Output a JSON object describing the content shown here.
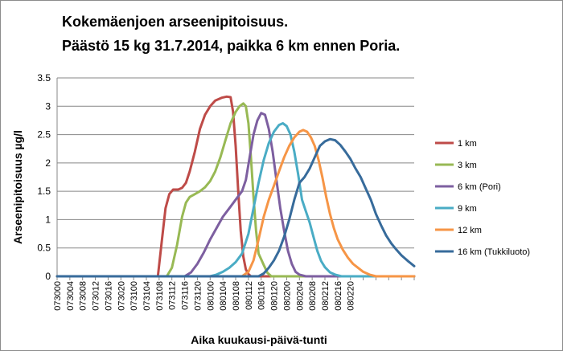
{
  "chart_data": {
    "type": "line",
    "title_lines": [
      "Kokemäenjoen arseenipitoisuus.",
      "Päästö 15 kg 31.7.2014, paikka 6 km ennen Poria."
    ],
    "xlabel": "Aika kuukausi-päivä-tunti",
    "ylabel": "Arseenipitoisuus µg/l",
    "ylim": [
      0,
      3.5
    ],
    "yticks": [
      "0",
      "0.5",
      "1",
      "1.5",
      "2",
      "2.5",
      "3",
      "3.5"
    ],
    "x_range": [
      0,
      28
    ],
    "x_tick_labels": [
      "073000",
      "073004",
      "073008",
      "073012",
      "073016",
      "073020",
      "073100",
      "073104",
      "073108",
      "073112",
      "073116",
      "073120",
      "080100",
      "080104",
      "080108",
      "080112",
      "080116",
      "080120",
      "080200",
      "080204",
      "080208",
      "080212",
      "080216",
      "080220"
    ],
    "grid": "horizontal",
    "legend_position": "right",
    "series": [
      {
        "name": "1 km",
        "color": "#BE4B48",
        "points": [
          [
            0,
            0
          ],
          [
            7.9,
            0
          ],
          [
            8.2,
            0.6
          ],
          [
            8.5,
            1.2
          ],
          [
            8.8,
            1.45
          ],
          [
            9.1,
            1.53
          ],
          [
            9.5,
            1.53
          ],
          [
            9.8,
            1.56
          ],
          [
            10.1,
            1.65
          ],
          [
            10.4,
            1.85
          ],
          [
            10.8,
            2.2
          ],
          [
            11.2,
            2.6
          ],
          [
            11.6,
            2.85
          ],
          [
            12,
            3.0
          ],
          [
            12.4,
            3.1
          ],
          [
            12.9,
            3.15
          ],
          [
            13.3,
            3.17
          ],
          [
            13.6,
            3.16
          ],
          [
            13.8,
            2.9
          ],
          [
            14.0,
            2.3
          ],
          [
            14.2,
            1.5
          ],
          [
            14.4,
            0.8
          ],
          [
            14.6,
            0.35
          ],
          [
            14.8,
            0.12
          ],
          [
            15.0,
            0.04
          ],
          [
            15.2,
            0
          ],
          [
            28,
            0
          ]
        ]
      },
      {
        "name": "3 km",
        "color": "#98B954",
        "points": [
          [
            0,
            0
          ],
          [
            8.6,
            0
          ],
          [
            9.0,
            0.15
          ],
          [
            9.4,
            0.55
          ],
          [
            9.8,
            1.05
          ],
          [
            10.1,
            1.3
          ],
          [
            10.4,
            1.4
          ],
          [
            10.8,
            1.45
          ],
          [
            11.2,
            1.5
          ],
          [
            11.6,
            1.57
          ],
          [
            12,
            1.68
          ],
          [
            12.4,
            1.85
          ],
          [
            12.8,
            2.1
          ],
          [
            13.2,
            2.4
          ],
          [
            13.6,
            2.7
          ],
          [
            14.0,
            2.9
          ],
          [
            14.3,
            3.0
          ],
          [
            14.6,
            3.05
          ],
          [
            14.8,
            3.0
          ],
          [
            15.0,
            2.7
          ],
          [
            15.2,
            2.1
          ],
          [
            15.4,
            1.4
          ],
          [
            15.6,
            0.8
          ],
          [
            15.8,
            0.4
          ],
          [
            16.0,
            0.3
          ],
          [
            16.2,
            0.2
          ],
          [
            16.5,
            0.06
          ],
          [
            16.8,
            0
          ],
          [
            28,
            0
          ]
        ]
      },
      {
        "name": "6 km (Pori)",
        "color": "#7D5FA0",
        "points": [
          [
            0,
            0
          ],
          [
            10.0,
            0
          ],
          [
            10.5,
            0.07
          ],
          [
            11.0,
            0.22
          ],
          [
            11.5,
            0.42
          ],
          [
            12,
            0.65
          ],
          [
            12.5,
            0.85
          ],
          [
            13,
            1.05
          ],
          [
            13.5,
            1.2
          ],
          [
            14,
            1.35
          ],
          [
            14.5,
            1.5
          ],
          [
            14.8,
            1.7
          ],
          [
            15.1,
            2.1
          ],
          [
            15.4,
            2.5
          ],
          [
            15.7,
            2.75
          ],
          [
            16.0,
            2.88
          ],
          [
            16.3,
            2.85
          ],
          [
            16.6,
            2.6
          ],
          [
            16.9,
            2.2
          ],
          [
            17.2,
            1.7
          ],
          [
            17.5,
            1.2
          ],
          [
            17.8,
            0.8
          ],
          [
            18.1,
            0.45
          ],
          [
            18.4,
            0.22
          ],
          [
            18.7,
            0.08
          ],
          [
            19.0,
            0.03
          ],
          [
            19.5,
            0
          ],
          [
            28,
            0
          ]
        ]
      },
      {
        "name": "9 km",
        "color": "#4AACC5",
        "points": [
          [
            0,
            0
          ],
          [
            12.0,
            0
          ],
          [
            12.5,
            0.03
          ],
          [
            13,
            0.08
          ],
          [
            13.5,
            0.15
          ],
          [
            14,
            0.25
          ],
          [
            14.5,
            0.4
          ],
          [
            15.0,
            0.75
          ],
          [
            15.4,
            1.2
          ],
          [
            15.8,
            1.65
          ],
          [
            16.2,
            2.05
          ],
          [
            16.6,
            2.35
          ],
          [
            17.0,
            2.55
          ],
          [
            17.4,
            2.67
          ],
          [
            17.7,
            2.7
          ],
          [
            18.0,
            2.65
          ],
          [
            18.3,
            2.5
          ],
          [
            18.6,
            2.2
          ],
          [
            18.9,
            1.8
          ],
          [
            19.2,
            1.35
          ],
          [
            19.5,
            1.15
          ],
          [
            19.8,
            0.95
          ],
          [
            20.1,
            0.7
          ],
          [
            20.4,
            0.45
          ],
          [
            20.7,
            0.27
          ],
          [
            21.0,
            0.16
          ],
          [
            21.4,
            0.07
          ],
          [
            21.8,
            0.03
          ],
          [
            22.3,
            0
          ],
          [
            28,
            0
          ]
        ]
      },
      {
        "name": "12 km",
        "color": "#F69546",
        "points": [
          [
            0,
            0
          ],
          [
            14.5,
            0
          ],
          [
            15.0,
            0.08
          ],
          [
            15.4,
            0.28
          ],
          [
            15.8,
            0.65
          ],
          [
            16.2,
            1.05
          ],
          [
            16.6,
            1.35
          ],
          [
            17.0,
            1.6
          ],
          [
            17.4,
            1.85
          ],
          [
            17.8,
            2.1
          ],
          [
            18.2,
            2.3
          ],
          [
            18.6,
            2.45
          ],
          [
            19.0,
            2.55
          ],
          [
            19.3,
            2.58
          ],
          [
            19.6,
            2.55
          ],
          [
            19.9,
            2.45
          ],
          [
            20.2,
            2.3
          ],
          [
            20.5,
            2.05
          ],
          [
            20.8,
            1.75
          ],
          [
            21.1,
            1.4
          ],
          [
            21.4,
            1.1
          ],
          [
            21.7,
            0.85
          ],
          [
            22.0,
            0.65
          ],
          [
            22.4,
            0.47
          ],
          [
            22.8,
            0.33
          ],
          [
            23.2,
            0.22
          ],
          [
            23.6,
            0.15
          ],
          [
            24.0,
            0.08
          ],
          [
            24.5,
            0.03
          ],
          [
            25.0,
            0
          ],
          [
            28,
            0
          ]
        ]
      },
      {
        "name": "16 km (Tukkiluoto)",
        "color": "#376B9B",
        "points": [
          [
            0,
            0
          ],
          [
            15.8,
            0
          ],
          [
            16.2,
            0.05
          ],
          [
            16.6,
            0.15
          ],
          [
            17.0,
            0.28
          ],
          [
            17.4,
            0.45
          ],
          [
            17.8,
            0.7
          ],
          [
            18.2,
            1.0
          ],
          [
            18.6,
            1.35
          ],
          [
            19.0,
            1.65
          ],
          [
            19.4,
            1.75
          ],
          [
            19.8,
            1.9
          ],
          [
            20.2,
            2.1
          ],
          [
            20.6,
            2.3
          ],
          [
            21.0,
            2.38
          ],
          [
            21.4,
            2.42
          ],
          [
            21.8,
            2.4
          ],
          [
            22.2,
            2.32
          ],
          [
            22.6,
            2.2
          ],
          [
            23.0,
            2.07
          ],
          [
            23.4,
            1.9
          ],
          [
            23.8,
            1.75
          ],
          [
            24.2,
            1.55
          ],
          [
            24.6,
            1.35
          ],
          [
            25.0,
            1.1
          ],
          [
            25.4,
            0.9
          ],
          [
            25.8,
            0.72
          ],
          [
            26.2,
            0.58
          ],
          [
            26.6,
            0.47
          ],
          [
            27.0,
            0.37
          ],
          [
            27.5,
            0.27
          ],
          [
            28,
            0.18
          ]
        ]
      }
    ]
  }
}
